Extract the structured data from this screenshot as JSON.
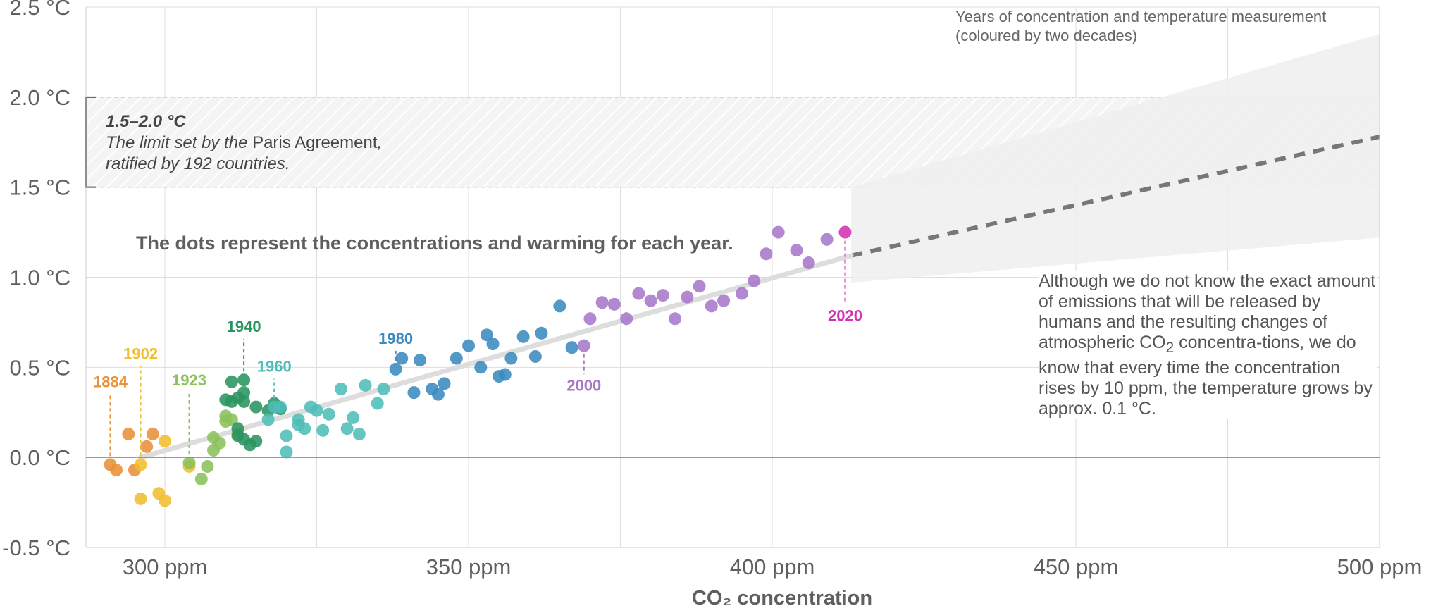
{
  "chart_data": {
    "type": "scatter",
    "xlabel": "CO₂ concentration",
    "x_ticks": [
      300,
      350,
      400,
      450,
      500
    ],
    "x_tick_labels": [
      "300 ppm",
      "350 ppm",
      "400 ppm",
      "450 ppm",
      "500 ppm"
    ],
    "xlim": [
      287,
      500
    ],
    "y_ticks": [
      -0.5,
      0.0,
      0.5,
      1.0,
      1.5,
      2.0,
      2.5
    ],
    "y_tick_labels": [
      "-0.5 °C",
      "0.0 °C",
      "0.5 °C",
      "1.0 °C",
      "1.5 °C",
      "2.0 °C",
      "2.5 °C"
    ],
    "ylim": [
      -0.5,
      2.5
    ],
    "grid": true,
    "trend_line": {
      "x": [
        296,
        413
      ],
      "y": [
        0.0,
        1.12
      ]
    },
    "projection": {
      "x": [
        413,
        500
      ],
      "y": [
        1.12,
        1.78
      ],
      "upper": [
        1.5,
        2.35
      ],
      "lower": [
        0.97,
        1.22
      ]
    },
    "paris_band": {
      "y": [
        1.5,
        2.0
      ]
    },
    "colors": {
      "1880s": "#e8913a",
      "1900s": "#f2be2e",
      "1920s": "#8bc15a",
      "1940s": "#2a9460",
      "1960s": "#4ebdb8",
      "1980s": "#3a8bbf",
      "2000s": "#a777c9",
      "2020": "#d531b4",
      "trend": "#dddddd",
      "projection_line": "#777777",
      "band": "#efefef"
    },
    "series": [
      {
        "color_key": "1880s",
        "points": [
          [
            291,
            -0.04
          ],
          [
            292,
            -0.07
          ],
          [
            294,
            0.13
          ],
          [
            295,
            -0.07
          ],
          [
            297,
            0.06
          ],
          [
            298,
            0.13
          ]
        ]
      },
      {
        "color_key": "1900s",
        "points": [
          [
            296,
            -0.04
          ],
          [
            296,
            -0.23
          ],
          [
            299,
            -0.2
          ],
          [
            300,
            0.09
          ],
          [
            300,
            -0.24
          ],
          [
            304,
            -0.05
          ]
        ]
      },
      {
        "color_key": "1920s",
        "points": [
          [
            304,
            -0.03
          ],
          [
            306,
            -0.12
          ],
          [
            307,
            -0.05
          ],
          [
            308,
            0.04
          ],
          [
            308,
            0.11
          ],
          [
            309,
            0.08
          ],
          [
            310,
            0.23
          ],
          [
            310,
            0.2
          ],
          [
            311,
            0.21
          ],
          [
            312,
            0.13
          ]
        ]
      },
      {
        "color_key": "1940s",
        "points": [
          [
            310,
            0.32
          ],
          [
            311,
            0.42
          ],
          [
            311,
            0.31
          ],
          [
            312,
            0.33
          ],
          [
            312,
            0.12
          ],
          [
            312,
            0.16
          ],
          [
            313,
            0.43
          ],
          [
            313,
            0.36
          ],
          [
            313,
            0.31
          ],
          [
            313,
            0.1
          ],
          [
            314,
            0.07
          ],
          [
            315,
            0.09
          ],
          [
            315,
            0.28
          ],
          [
            317,
            0.26
          ],
          [
            318,
            0.3
          ],
          [
            319,
            0.27
          ]
        ]
      },
      {
        "color_key": "1960s",
        "points": [
          [
            317,
            0.21
          ],
          [
            318,
            0.28
          ],
          [
            319,
            0.28
          ],
          [
            320,
            0.03
          ],
          [
            320,
            0.12
          ],
          [
            322,
            0.18
          ],
          [
            322,
            0.21
          ],
          [
            323,
            0.16
          ],
          [
            324,
            0.28
          ],
          [
            325,
            0.26
          ],
          [
            326,
            0.15
          ],
          [
            327,
            0.24
          ],
          [
            329,
            0.38
          ],
          [
            330,
            0.16
          ],
          [
            331,
            0.22
          ],
          [
            332,
            0.13
          ],
          [
            333,
            0.4
          ],
          [
            335,
            0.3
          ],
          [
            336,
            0.38
          ]
        ]
      },
      {
        "color_key": "1980s",
        "points": [
          [
            338,
            0.49
          ],
          [
            339,
            0.55
          ],
          [
            341,
            0.36
          ],
          [
            342,
            0.54
          ],
          [
            344,
            0.38
          ],
          [
            345,
            0.35
          ],
          [
            346,
            0.41
          ],
          [
            348,
            0.55
          ],
          [
            350,
            0.62
          ],
          [
            352,
            0.5
          ],
          [
            353,
            0.68
          ],
          [
            354,
            0.63
          ],
          [
            355,
            0.45
          ],
          [
            356,
            0.46
          ],
          [
            357,
            0.55
          ],
          [
            359,
            0.67
          ],
          [
            361,
            0.56
          ],
          [
            362,
            0.69
          ],
          [
            365,
            0.84
          ],
          [
            367,
            0.61
          ]
        ]
      },
      {
        "color_key": "2000s",
        "points": [
          [
            369,
            0.62
          ],
          [
            370,
            0.77
          ],
          [
            372,
            0.86
          ],
          [
            374,
            0.85
          ],
          [
            376,
            0.77
          ],
          [
            378,
            0.91
          ],
          [
            380,
            0.87
          ],
          [
            382,
            0.9
          ],
          [
            384,
            0.77
          ],
          [
            386,
            0.89
          ],
          [
            388,
            0.95
          ],
          [
            390,
            0.84
          ],
          [
            392,
            0.87
          ],
          [
            395,
            0.91
          ],
          [
            397,
            0.98
          ],
          [
            399,
            1.13
          ],
          [
            401,
            1.25
          ],
          [
            404,
            1.15
          ],
          [
            406,
            1.08
          ],
          [
            409,
            1.21
          ]
        ]
      },
      {
        "color_key": "2020",
        "points": [
          [
            412,
            1.25
          ]
        ]
      }
    ],
    "year_labels": [
      {
        "text": "1884",
        "x": 291,
        "y": -0.04,
        "color_key": "1880s"
      },
      {
        "text": "1902",
        "x": 296,
        "y": -0.04,
        "color_key": "1900s"
      },
      {
        "text": "1923",
        "x": 304,
        "y": -0.03,
        "color_key": "1920s"
      },
      {
        "text": "1940",
        "x": 313,
        "y": 0.43,
        "color_key": "1940s"
      },
      {
        "text": "1960",
        "x": 318,
        "y": 0.28,
        "color_key": "1960s"
      },
      {
        "text": "1980",
        "x": 338,
        "y": 0.49,
        "color_key": "1980s"
      },
      {
        "text": "2000",
        "x": 369,
        "y": 0.62,
        "color_key": "2000s"
      },
      {
        "text": "2020",
        "x": 412,
        "y": 1.25,
        "color_key": "2020"
      }
    ]
  },
  "notes": {
    "legend_line1": "Years of concentration and temperature measurement",
    "legend_line2": "(coloured by two decades)",
    "paris_range": "1.5–2.0 °C",
    "paris_text_pre": "The limit set by the ",
    "paris_text_em": "Paris Agreement",
    "paris_text_post": ",",
    "paris_line2": "ratified by 192 countries.",
    "dots_note": "The dots represent the concentrations and warming for each year.",
    "explain_pre": "Although we do not know the exact amount of emissions that will be released by humans and the resulting changes of atmospheric CO",
    "explain_sub": "2",
    "explain_post": " concentra-tions, we do know that every time the concentration rises by 10 ppm, the temperature grows by approx. 0.1 °C."
  }
}
